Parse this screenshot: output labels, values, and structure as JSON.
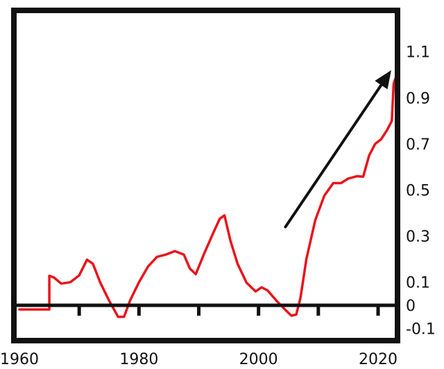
{
  "chart_data": {
    "type": "line",
    "title": "",
    "xlabel": "",
    "ylabel": "",
    "xlim": [
      1960,
      2023
    ],
    "ylim": [
      -0.1,
      1.1
    ],
    "x_ticks": [
      1960,
      1980,
      2000,
      2020
    ],
    "x_tick_labels": [
      "1960",
      "1980",
      "2000",
      "2020"
    ],
    "x_minor_ticks": [
      1970,
      1980,
      1990,
      2000,
      2010,
      2020
    ],
    "y_ticks": [
      1.1,
      0.9,
      0.7,
      0.5,
      0.3,
      0.1,
      0,
      -0.1
    ],
    "y_tick_labels": [
      "1.1",
      "0.9",
      "0.7",
      "0.5",
      "0.3",
      "0.1",
      "0",
      "-0.1"
    ],
    "baseline": 0,
    "grid": false,
    "legend": "none",
    "line_color": "#e8131b",
    "axis_color": "#111111",
    "arrow_color": "#111111",
    "arrow": {
      "from": [
        2004.5,
        0.34
      ],
      "to": [
        2022.2,
        1.02
      ]
    },
    "series": [
      {
        "x": [
          1960,
          1965,
          1965,
          1965.8,
          1967,
          1968.5,
          1970,
          1971.3,
          1972.3,
          1973.5,
          1975,
          1976.5,
          1977.5,
          1978.5,
          1980,
          1981.5,
          1983,
          1984.5,
          1986,
          1987.5,
          1988.5,
          1989.5,
          1991,
          1992.5,
          1993.5,
          1994.3,
          1995.3,
          1996.5,
          1998,
          1999.5,
          2000.5,
          2001.5,
          2003,
          2004.5,
          2005.5,
          2006.3,
          2007,
          2008,
          2009.5,
          2011,
          2012.5,
          2013.8,
          2015,
          2016.5,
          2017.5,
          2018.5,
          2019.5,
          2020.5,
          2021.5,
          2022.3,
          2022.6,
          2022.9
        ],
        "y": [
          -0.018,
          -0.018,
          0.128,
          0.12,
          0.094,
          0.1,
          0.13,
          0.198,
          0.18,
          0.1,
          0.02,
          -0.05,
          -0.05,
          0.02,
          0.1,
          0.168,
          0.21,
          0.22,
          0.235,
          0.22,
          0.16,
          0.135,
          0.23,
          0.318,
          0.375,
          0.39,
          0.28,
          0.18,
          0.098,
          0.06,
          0.078,
          0.065,
          0.02,
          -0.02,
          -0.045,
          -0.04,
          0.03,
          0.2,
          0.37,
          0.475,
          0.53,
          0.53,
          0.55,
          0.56,
          0.558,
          0.65,
          0.7,
          0.72,
          0.76,
          0.8,
          0.96,
          0.985
        ]
      }
    ]
  }
}
